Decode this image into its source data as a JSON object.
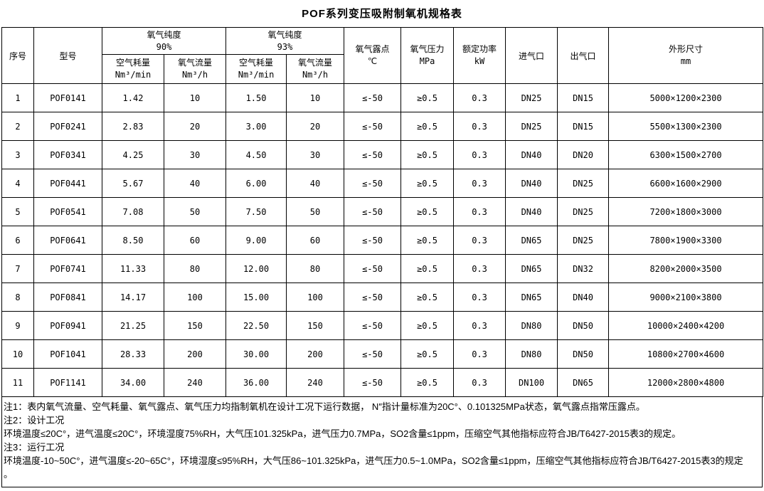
{
  "title": "POF系列变压吸附制氧机规格表",
  "table": {
    "headers": {
      "serial": "序号",
      "model": "型号",
      "purity90": {
        "line1": "氧气纯度",
        "line2": "90%"
      },
      "purity93": {
        "line1": "氧气纯度",
        "line2": "93%"
      },
      "air_consumption": {
        "line1": "空气耗量",
        "line2": "Nm³/min"
      },
      "oxygen_flow": {
        "line1": "氧气流量",
        "line2": "Nm³/h"
      },
      "dew_point": {
        "line1": "氧气露点",
        "line2": "℃"
      },
      "pressure": {
        "line1": "氧气压力",
        "line2": "MPa"
      },
      "power": {
        "line1": "额定功率",
        "line2": "kW"
      },
      "inlet": "进气口",
      "outlet": "出气口",
      "dimensions": {
        "line1": "外形尺寸",
        "line2": "mm"
      }
    },
    "rows": [
      [
        "1",
        "POF0141",
        "1.42",
        "10",
        "1.50",
        "10",
        "≤-50",
        "≥0.5",
        "0.3",
        "DN25",
        "DN15",
        "5000×1200×2300"
      ],
      [
        "2",
        "POF0241",
        "2.83",
        "20",
        "3.00",
        "20",
        "≤-50",
        "≥0.5",
        "0.3",
        "DN25",
        "DN15",
        "5500×1300×2300"
      ],
      [
        "3",
        "POF0341",
        "4.25",
        "30",
        "4.50",
        "30",
        "≤-50",
        "≥0.5",
        "0.3",
        "DN40",
        "DN20",
        "6300×1500×2700"
      ],
      [
        "4",
        "POF0441",
        "5.67",
        "40",
        "6.00",
        "40",
        "≤-50",
        "≥0.5",
        "0.3",
        "DN40",
        "DN25",
        "6600×1600×2900"
      ],
      [
        "5",
        "POF0541",
        "7.08",
        "50",
        "7.50",
        "50",
        "≤-50",
        "≥0.5",
        "0.3",
        "DN40",
        "DN25",
        "7200×1800×3000"
      ],
      [
        "6",
        "POF0641",
        "8.50",
        "60",
        "9.00",
        "60",
        "≤-50",
        "≥0.5",
        "0.3",
        "DN65",
        "DN25",
        "7800×1900×3300"
      ],
      [
        "7",
        "POF0741",
        "11.33",
        "80",
        "12.00",
        "80",
        "≤-50",
        "≥0.5",
        "0.3",
        "DN65",
        "DN32",
        "8200×2000×3500"
      ],
      [
        "8",
        "POF0841",
        "14.17",
        "100",
        "15.00",
        "100",
        "≤-50",
        "≥0.5",
        "0.3",
        "DN65",
        "DN40",
        "9000×2100×3800"
      ],
      [
        "9",
        "POF0941",
        "21.25",
        "150",
        "22.50",
        "150",
        "≤-50",
        "≥0.5",
        "0.3",
        "DN80",
        "DN50",
        "10000×2400×4200"
      ],
      [
        "10",
        "POF1041",
        "28.33",
        "200",
        "30.00",
        "200",
        "≤-50",
        "≥0.5",
        "0.3",
        "DN80",
        "DN50",
        "10800×2700×4600"
      ],
      [
        "11",
        "POF1141",
        "34.00",
        "240",
        "36.00",
        "240",
        "≤-50",
        "≥0.5",
        "0.3",
        "DN100",
        "DN65",
        "12000×2800×4800"
      ]
    ]
  },
  "notes": [
    "注1：表内氧气流量、空气耗量、氧气露点、氧气压力均指制氧机在设计工况下运行数据，  N″指计量标准为20C°、0.101325MPa状态，氧气露点指常压露点。",
    "注2：设计工况",
    "环境温度≤20C°，进气温度≤20C°，环境湿度75%RH，大气压101.325kPa，进气压力0.7MPa，SO2含量≤1ppm，压缩空气其他指标应符合JB/T6427-2015表3的规定。",
    "注3：运行工况",
    "环境温度-10~50C°，进气温度≤-20~65C°，环境湿度≤95%RH，大气压86~101.325kPa，进气压力0.5~1.0MPa，SO2含量≤1ppm，压缩空气其他指标应符合JB/T6427-2015表3的规定",
    "。"
  ]
}
